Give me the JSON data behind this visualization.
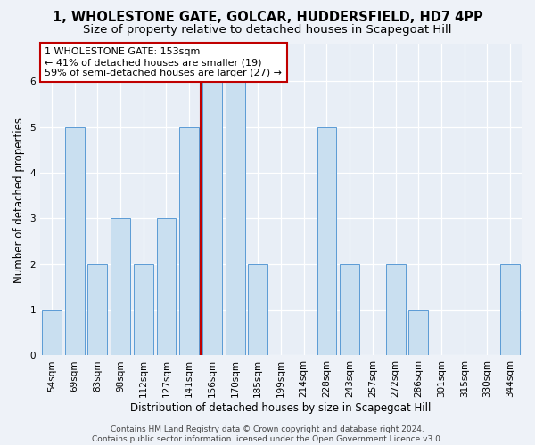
{
  "title": "1, WHOLESTONE GATE, GOLCAR, HUDDERSFIELD, HD7 4PP",
  "subtitle": "Size of property relative to detached houses in Scapegoat Hill",
  "xlabel": "Distribution of detached houses by size in Scapegoat Hill",
  "ylabel": "Number of detached properties",
  "categories": [
    "54sqm",
    "69sqm",
    "83sqm",
    "98sqm",
    "112sqm",
    "127sqm",
    "141sqm",
    "156sqm",
    "170sqm",
    "185sqm",
    "199sqm",
    "214sqm",
    "228sqm",
    "243sqm",
    "257sqm",
    "272sqm",
    "286sqm",
    "301sqm",
    "315sqm",
    "330sqm",
    "344sqm"
  ],
  "values": [
    1,
    5,
    2,
    3,
    2,
    3,
    5,
    6,
    6,
    2,
    0,
    0,
    5,
    2,
    0,
    2,
    1,
    0,
    0,
    0,
    2
  ],
  "bar_color": "#c9dff0",
  "bar_edge_color": "#5b9bd5",
  "red_line_index": 7,
  "highlight_color": "#c00000",
  "annotation_text": "1 WHOLESTONE GATE: 153sqm\n← 41% of detached houses are smaller (19)\n59% of semi-detached houses are larger (27) →",
  "annotation_box_color": "#ffffff",
  "annotation_box_edge": "#c00000",
  "ylim": [
    0,
    6.8
  ],
  "yticks": [
    0,
    1,
    2,
    3,
    4,
    5,
    6
  ],
  "footer": "Contains HM Land Registry data © Crown copyright and database right 2024.\nContains public sector information licensed under the Open Government Licence v3.0.",
  "bg_color": "#eef2f8",
  "plot_bg_color": "#e8eef6",
  "grid_color": "#ffffff",
  "title_fontsize": 10.5,
  "subtitle_fontsize": 9.5,
  "axis_label_fontsize": 8.5,
  "tick_fontsize": 7.5,
  "footer_fontsize": 6.5,
  "annotation_fontsize": 8.0
}
